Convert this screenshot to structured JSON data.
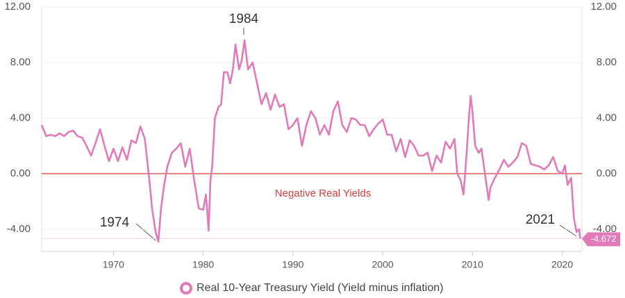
{
  "chart_data": {
    "type": "line",
    "x": [
      1962,
      1962.5,
      1963,
      1963.5,
      1964,
      1964.5,
      1965,
      1965.5,
      1966,
      1966.5,
      1967,
      1967.5,
      1968,
      1968.5,
      1969,
      1969.5,
      1970,
      1970.5,
      1971,
      1971.5,
      1972,
      1972.5,
      1973,
      1973.5,
      1974,
      1974.3,
      1974.7,
      1975,
      1975.3,
      1975.6,
      1976,
      1976.5,
      1977,
      1977.5,
      1978,
      1978.5,
      1979,
      1979.5,
      1980,
      1980.3,
      1980.6,
      1980.8,
      1981,
      1981.3,
      1981.7,
      1982,
      1982.3,
      1982.7,
      1983,
      1983.3,
      1983.6,
      1984,
      1984.3,
      1984.6,
      1985,
      1985.5,
      1986,
      1986.5,
      1987,
      1987.5,
      1988,
      1988.5,
      1989,
      1989.5,
      1990,
      1990.5,
      1991,
      1991.5,
      1992,
      1992.5,
      1993,
      1993.5,
      1994,
      1994.5,
      1995,
      1995.5,
      1996,
      1996.5,
      1997,
      1997.5,
      1998,
      1998.5,
      1999,
      1999.5,
      2000,
      2000.5,
      2001,
      2001.5,
      2002,
      2002.5,
      2003,
      2003.5,
      2004,
      2004.5,
      2005,
      2005.5,
      2006,
      2006.5,
      2007,
      2007.5,
      2008,
      2008.3,
      2008.7,
      2009,
      2009.3,
      2009.6,
      2009.8,
      2010,
      2010.3,
      2010.7,
      2011,
      2011.5,
      2011.8,
      2012,
      2012.5,
      2013,
      2013.5,
      2014,
      2014.5,
      2015,
      2015.5,
      2016,
      2016.5,
      2017,
      2017.5,
      2018,
      2018.5,
      2019,
      2019.5,
      2020,
      2020.3,
      2020.6,
      2021,
      2021.3,
      2021.6,
      2021.9,
      2022
    ],
    "series": [
      {
        "name": "Real 10-Year Treasury Yield (Yield minus inflation)",
        "color": "#e07ab8",
        "values": [
          3.5,
          2.7,
          2.8,
          2.7,
          2.9,
          2.7,
          3.0,
          3.1,
          2.7,
          2.6,
          2.0,
          1.3,
          2.2,
          3.2,
          2.0,
          0.9,
          1.8,
          0.9,
          1.9,
          1.0,
          2.4,
          2.2,
          3.4,
          2.5,
          -0.5,
          -2.5,
          -4.2,
          -4.9,
          -2.5,
          -1.0,
          0.5,
          1.5,
          1.8,
          2.2,
          0.5,
          1.8,
          -0.5,
          -2.5,
          -2.6,
          -1.5,
          -4.1,
          -0.5,
          0.5,
          4.0,
          4.8,
          5.0,
          7.3,
          7.3,
          6.5,
          7.5,
          9.3,
          7.5,
          8.2,
          9.6,
          7.5,
          8.0,
          6.5,
          5.0,
          5.8,
          4.6,
          5.7,
          4.8,
          5.0,
          3.2,
          3.5,
          4.0,
          2.0,
          3.5,
          4.5,
          4.0,
          2.8,
          3.5,
          2.8,
          4.5,
          5.2,
          3.5,
          3.0,
          4.0,
          3.9,
          3.5,
          3.5,
          2.7,
          3.2,
          3.6,
          3.9,
          2.8,
          2.8,
          1.6,
          2.5,
          1.2,
          2.4,
          2.0,
          1.3,
          1.3,
          1.5,
          0.2,
          1.3,
          0.8,
          2.3,
          1.8,
          2.5,
          0.0,
          -0.5,
          -1.5,
          1.0,
          4.0,
          5.6,
          4.5,
          2.0,
          1.5,
          1.8,
          -0.5,
          -1.9,
          -1.0,
          -0.3,
          0.3,
          1.0,
          0.5,
          0.8,
          1.2,
          2.2,
          2.0,
          0.7,
          0.6,
          0.5,
          0.3,
          0.6,
          1.2,
          0.2,
          0.0,
          0.6,
          -0.8,
          -0.3,
          -3.2,
          -4.2,
          -4.0,
          -4.672
        ]
      }
    ],
    "xlim": [
      1962,
      2022.2
    ],
    "xticks": [
      1970,
      1980,
      1990,
      2000,
      2010,
      2020
    ],
    "ylim": [
      -5.6,
      12
    ],
    "yticks": [
      {
        "value": -4,
        "label": "-4.00"
      },
      {
        "value": 0,
        "label": "0.00"
      },
      {
        "value": 4,
        "label": "4.00"
      },
      {
        "value": 8,
        "label": "8.00"
      },
      {
        "value": 12,
        "label": "12.00"
      }
    ],
    "grid": true,
    "reference_line": {
      "value": 0,
      "label": "Negative Real Yields",
      "color": "#d93a3a"
    },
    "annotations": [
      "1984",
      "1974",
      "2021"
    ]
  }
}
